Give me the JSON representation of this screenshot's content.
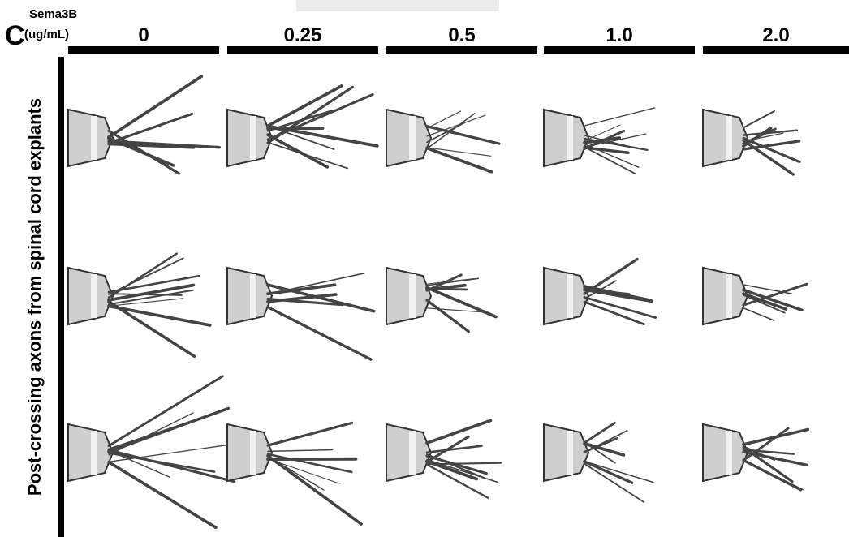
{
  "panel": {
    "label": "C",
    "factor": "Sema3B",
    "unit": "(ug/mL)",
    "concentrations": [
      "0",
      "0.25",
      "0.5",
      "1.0",
      "2.0"
    ],
    "row_label": "Post-crossing axons from spinal cord explants"
  }
}
